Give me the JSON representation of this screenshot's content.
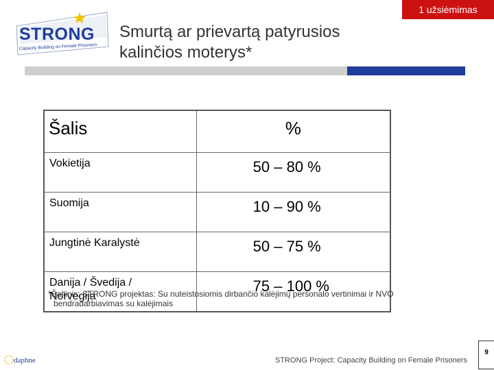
{
  "header": {
    "section_badge": "1 užsiėmimas",
    "title_line1": "Smurtą ar prievartą patyrusios",
    "title_line2": "kalinčios moterys*"
  },
  "logo": {
    "word": "STRONG",
    "tagline": "Capacity Building on Female Prisoners"
  },
  "table": {
    "headers": [
      "Šalis",
      "%"
    ],
    "rows": [
      {
        "country_line1": "Vokietija",
        "country_line2": "",
        "range": "50 –  80 %"
      },
      {
        "country_line1": "Suomija",
        "country_line2": "",
        "range": "10 –  90 %"
      },
      {
        "country_line1": "Jungtinė Karalystė",
        "country_line2": "",
        "range": "50 –  75 %"
      },
      {
        "country_line1": "Danija / Švedija /",
        "country_line2": "Norvegija",
        "range": "75 – 100 %"
      }
    ]
  },
  "source_note": {
    "line1": "*Šaltinis: STRONG projektas: Su nuteistosiomis dirbančio kalėjimų personalo vertinimai ir NVO",
    "line2": "bendradarbiavimas su kalėjimais"
  },
  "footer": {
    "project": "STRONG Project: Capacity Building on Female Prisoners",
    "page_number": "9",
    "daphne_logo_text": "daphne"
  },
  "colors": {
    "badge_red": "#cc1111",
    "rule_blue": "#1e3d9c",
    "rule_grey": "#cfcfcf",
    "logo_blue": "#1e3d9c",
    "star_yellow": "#f2c200"
  }
}
